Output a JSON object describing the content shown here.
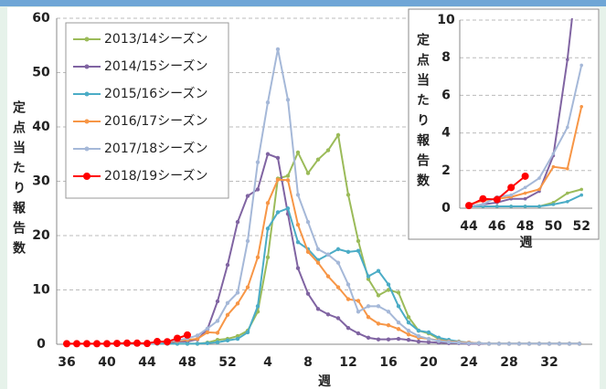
{
  "chart_data": [
    {
      "type": "line",
      "x_label": "週",
      "y_label": "定点当たり報告数",
      "categories": [
        36,
        null,
        null,
        null,
        40,
        null,
        null,
        null,
        44,
        null,
        null,
        null,
        48,
        null,
        null,
        null,
        52,
        null,
        null,
        null,
        4,
        null,
        null,
        null,
        8,
        null,
        null,
        null,
        12,
        null,
        null,
        null,
        16,
        null,
        null,
        null,
        20,
        null,
        null,
        null,
        24,
        null,
        null,
        null,
        28,
        null,
        null,
        null,
        32,
        null,
        null,
        null
      ],
      "ylim": [
        0,
        60
      ],
      "yticks": [
        0,
        10,
        20,
        30,
        40,
        50,
        60
      ],
      "grid": true,
      "legend": "top-left",
      "series": [
        {
          "name": "2013/14シーズン",
          "color": "#9bbb59",
          "values": [
            null,
            null,
            null,
            null,
            null,
            null,
            null,
            null,
            0.1,
            0.1,
            0.1,
            0.1,
            0.1,
            0.1,
            0.3,
            0.8,
            1.0,
            1.5,
            2.5,
            6,
            16,
            30.5,
            31,
            35.3,
            31.5,
            34,
            35.7,
            38.5,
            27.5,
            19,
            12,
            9,
            10,
            9.5,
            5,
            2.5,
            2,
            1,
            0.6,
            0.4,
            0.3,
            0.2,
            0.1,
            0.1,
            0.1,
            0.1,
            0.1,
            0.1,
            0.1,
            0.1,
            0.1,
            0.1
          ]
        },
        {
          "name": "2014/15シーズン",
          "color": "#8064a2",
          "values": [
            null,
            null,
            null,
            null,
            null,
            null,
            null,
            null,
            0.1,
            0.2,
            0.3,
            0.5,
            0.5,
            0.9,
            2.8,
            7.9,
            14.6,
            22.5,
            27.3,
            28.5,
            35,
            34.3,
            24,
            14,
            9.3,
            6.5,
            5.5,
            4.8,
            3,
            2,
            1.2,
            0.9,
            0.9,
            1,
            0.8,
            0.5,
            0.4,
            0.3,
            0.2,
            0.2,
            0.1,
            0.1,
            0.1,
            0.1,
            0.1,
            0.1,
            0.1,
            0.1,
            0.1,
            0.1,
            0.1,
            0.1
          ]
        },
        {
          "name": "2015/16シーズン",
          "color": "#4bacc6",
          "values": [
            null,
            null,
            null,
            null,
            null,
            null,
            null,
            null,
            0.1,
            0.1,
            0.1,
            0.1,
            0.1,
            0.1,
            0.2,
            0.35,
            0.7,
            1,
            2.2,
            7,
            21.3,
            24.3,
            25,
            18.8,
            17.5,
            15.5,
            16.5,
            17.5,
            17,
            17.2,
            12.5,
            13.5,
            11,
            7,
            4,
            2.5,
            2.2,
            1.2,
            0.8,
            0.5,
            0.3,
            0.2,
            0.1,
            0.1,
            0.1,
            0.1,
            0.1,
            0.1,
            0.1,
            0.1,
            0.1,
            0.1
          ]
        },
        {
          "name": "2016/17シーズン",
          "color": "#f79646",
          "values": [
            null,
            null,
            null,
            null,
            null,
            null,
            null,
            null,
            0.2,
            0.4,
            0.5,
            0.6,
            0.8,
            1.0,
            2.2,
            2.1,
            5.4,
            7.5,
            10.5,
            16,
            26,
            30.3,
            30.2,
            22,
            17,
            15,
            12.5,
            10.5,
            8.3,
            8,
            5,
            3.8,
            3.5,
            2.8,
            1.8,
            1.2,
            1,
            0.7,
            0.5,
            0.4,
            0.3,
            0.2,
            0.1,
            0.1,
            0.1,
            0.1,
            0.1,
            0.1,
            0.1,
            0.1,
            0.1,
            0.1
          ]
        },
        {
          "name": "2017/18シーズン",
          "color": "#a5b8d8",
          "values": [
            null,
            null,
            null,
            null,
            null,
            null,
            null,
            null,
            0.1,
            0.2,
            0.6,
            0.7,
            1.1,
            1.6,
            2.9,
            4.3,
            7.6,
            9.5,
            19,
            33.5,
            44.5,
            54.3,
            45,
            27.5,
            22.5,
            17.5,
            16.5,
            15,
            11,
            6,
            7,
            7,
            6,
            4,
            2.5,
            1.5,
            1,
            0.6,
            0.4,
            0.3,
            0.2,
            0.2,
            0.1,
            0.1,
            0.1,
            0.1,
            0.1,
            0.1,
            0.1,
            0.1,
            0.1,
            0.1
          ]
        },
        {
          "name": "2018/19シーズン",
          "color": "#ff0000",
          "values": [
            0.1,
            0.1,
            0.1,
            0.1,
            0.1,
            0.15,
            0.2,
            0.2,
            0.14,
            0.5,
            0.46,
            1.1,
            1.7,
            null,
            null,
            null,
            null,
            null,
            null,
            null,
            null,
            null,
            null,
            null,
            null,
            null,
            null,
            null,
            null,
            null,
            null,
            null,
            null,
            null,
            null,
            null,
            null,
            null,
            null,
            null,
            null,
            null,
            null,
            null,
            null,
            null,
            null,
            null,
            null,
            null,
            null,
            null
          ]
        }
      ]
    },
    {
      "type": "line",
      "x_label": "週",
      "y_label": "定点当たり報告数",
      "categories": [
        44,
        null,
        46,
        null,
        48,
        null,
        50,
        null,
        52
      ],
      "ylim": [
        0,
        10
      ],
      "yticks": [
        0,
        2,
        4,
        6,
        8,
        10
      ],
      "grid": true,
      "series": [
        {
          "color": "#9bbb59",
          "values": [
            0.1,
            0.1,
            0.1,
            0.1,
            0.1,
            0.1,
            0.3,
            0.8,
            1.0
          ]
        },
        {
          "color": "#8064a2",
          "values": [
            0.1,
            0.2,
            0.3,
            0.5,
            0.5,
            0.9,
            2.8,
            7.9,
            14.6
          ]
        },
        {
          "color": "#4bacc6",
          "values": [
            0.1,
            0.1,
            0.1,
            0.1,
            0.1,
            0.1,
            0.2,
            0.35,
            0.7
          ]
        },
        {
          "color": "#f79646",
          "values": [
            0.2,
            0.4,
            0.5,
            0.6,
            0.8,
            1.0,
            2.2,
            2.1,
            5.4
          ]
        },
        {
          "color": "#a5b8d8",
          "values": [
            0.1,
            0.2,
            0.6,
            0.7,
            1.1,
            1.6,
            2.9,
            4.3,
            7.6
          ]
        },
        {
          "color": "#ff0000",
          "values": [
            0.14,
            0.5,
            0.46,
            1.1,
            1.7,
            null,
            null,
            null,
            null
          ]
        }
      ]
    }
  ]
}
